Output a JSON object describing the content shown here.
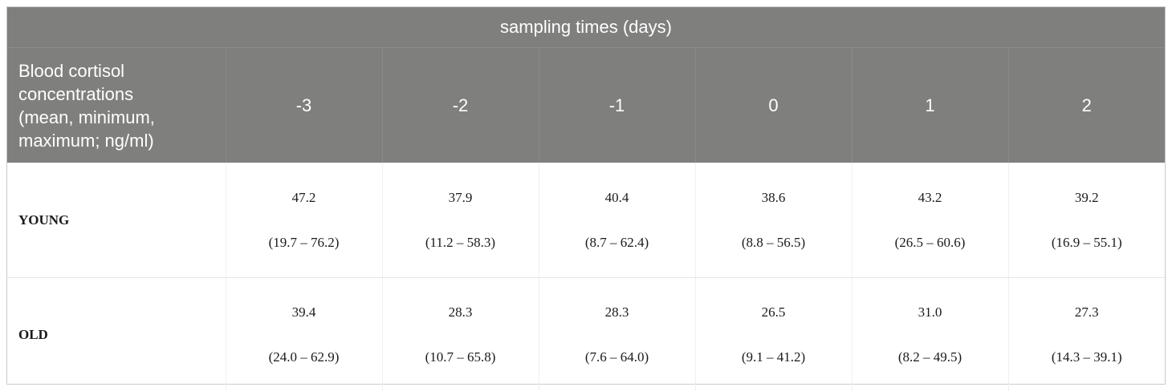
{
  "table": {
    "group_header": "sampling times (days)",
    "stub_header_lines": [
      "Blood cortisol",
      "concentrations",
      "(mean, minimum,",
      "maximum; ng/ml)"
    ],
    "columns": [
      "-3",
      "-2",
      "-1",
      "0",
      "1",
      "2"
    ],
    "rows": [
      {
        "label": "YOUNG",
        "cells": [
          {
            "mean": "47.2",
            "range": "(19.7 – 76.2)"
          },
          {
            "mean": "37.9",
            "range": "(11.2 – 58.3)"
          },
          {
            "mean": "40.4",
            "range": "(8.7 – 62.4)"
          },
          {
            "mean": "38.6",
            "range": "(8.8 – 56.5)"
          },
          {
            "mean": "43.2",
            "range": "(26.5 – 60.6)"
          },
          {
            "mean": "39.2",
            "range": "(16.9 – 55.1)"
          }
        ]
      },
      {
        "label": "OLD",
        "cells": [
          {
            "mean": "39.4",
            "range": "(24.0 – 62.9)"
          },
          {
            "mean": "28.3",
            "range": "(10.7 – 65.8)"
          },
          {
            "mean": "28.3",
            "range": "(7.6 – 64.0)"
          },
          {
            "mean": "26.5",
            "range": "(9.1 – 41.2)"
          },
          {
            "mean": "31.0",
            "range": "(8.2 – 49.5)"
          },
          {
            "mean": "27.3",
            "range": "(14.3 – 39.1)"
          }
        ]
      }
    ],
    "colors": {
      "header_bg": "#7f7f7e",
      "header_text": "#ffffff",
      "body_text": "#1a1a1a"
    }
  }
}
